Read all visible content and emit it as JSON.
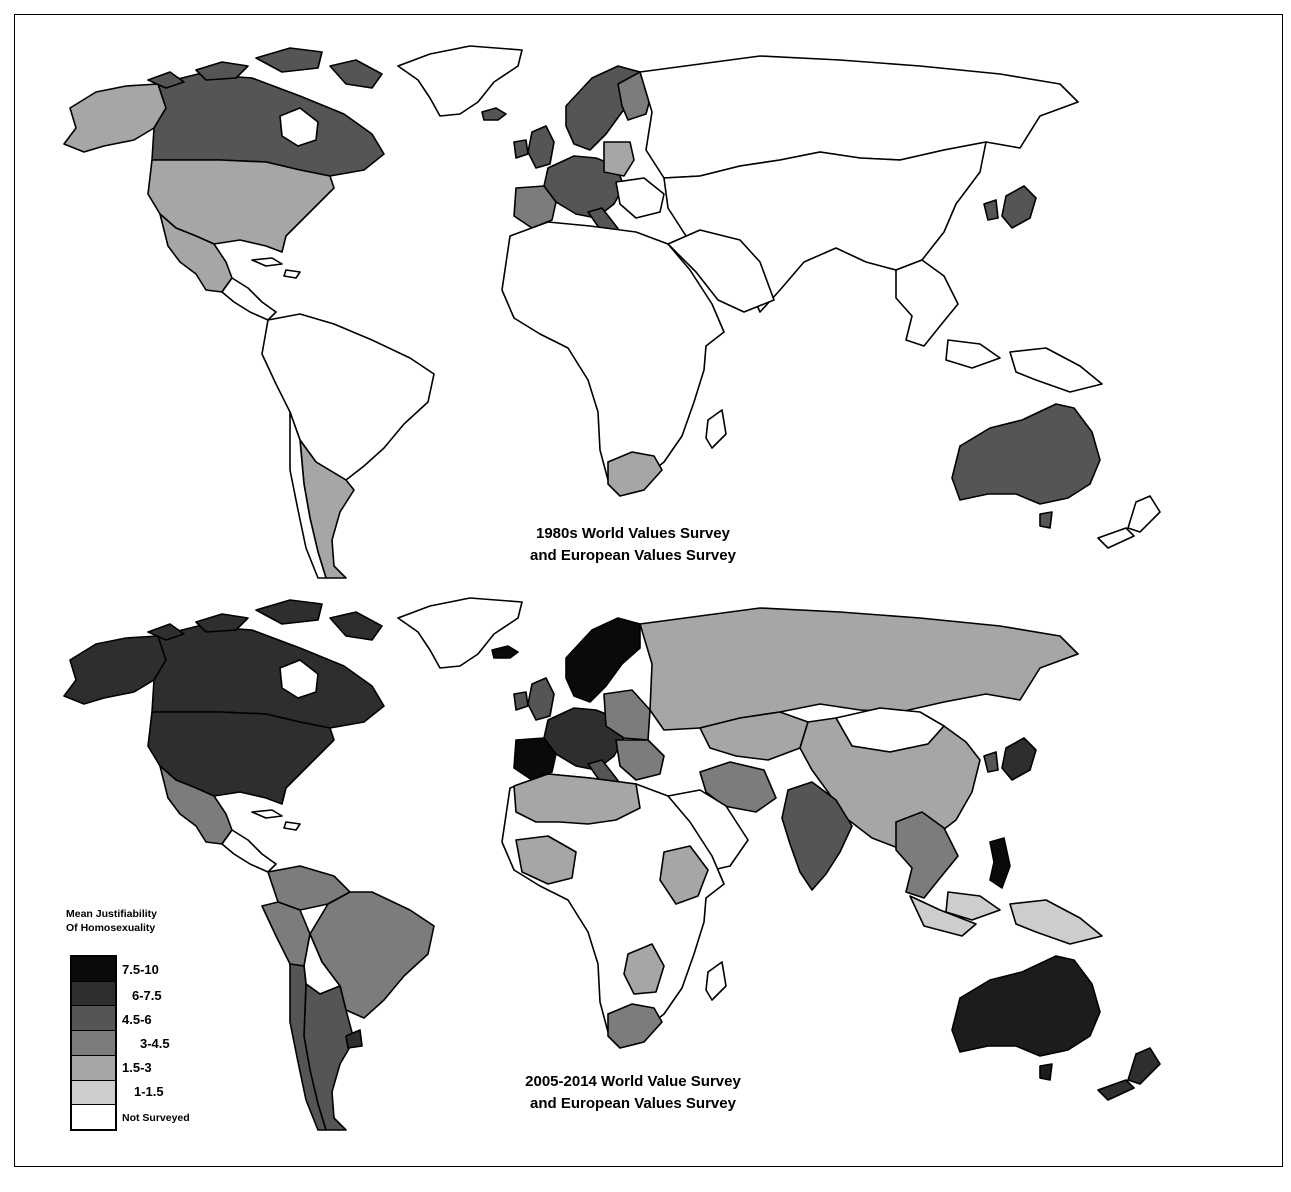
{
  "maps": [
    {
      "caption_line1": "1980s World Values Survey",
      "caption_line2": "and European Values Survey"
    },
    {
      "caption_line1": "2005-2014 World Value Survey",
      "caption_line2": "and European Values Survey"
    }
  ],
  "legend": {
    "title_line1": "Mean Justifiability",
    "title_line2": "Of Homosexuality",
    "items": [
      {
        "label": "7.5-10",
        "color": "#0a0a0a"
      },
      {
        "label": "6-7.5",
        "color": "#2e2e2e"
      },
      {
        "label": "4.5-6",
        "color": "#555555"
      },
      {
        "label": "3-4.5",
        "color": "#7c7c7c"
      },
      {
        "label": "1.5-3",
        "color": "#a6a6a6"
      },
      {
        "label": "1-1.5",
        "color": "#cdcdcd"
      },
      {
        "label": "Not Surveyed",
        "color": "#ffffff"
      }
    ]
  }
}
